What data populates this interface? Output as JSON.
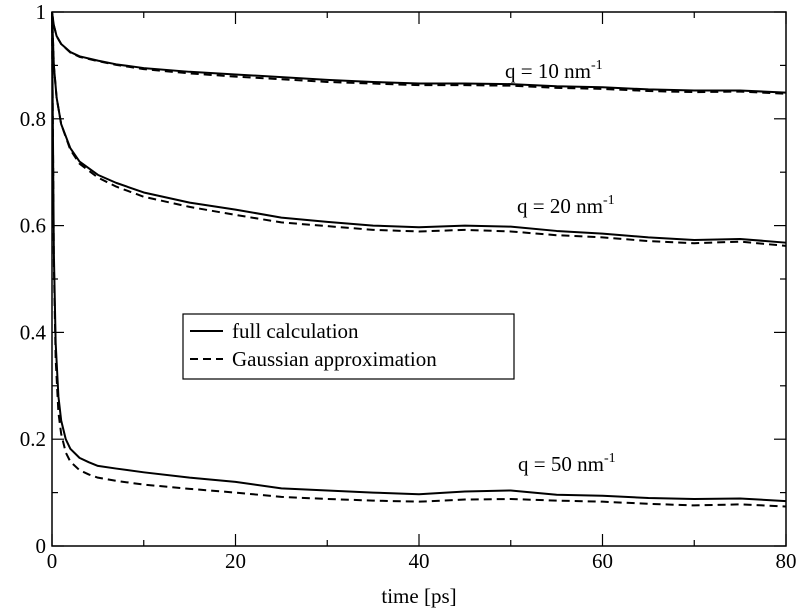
{
  "chart_data": {
    "type": "line",
    "title": "",
    "xlabel": "time [ps]",
    "ylabel": "",
    "xlim": [
      0,
      80
    ],
    "ylim": [
      0,
      1
    ],
    "xticks": [
      0,
      20,
      40,
      60,
      80
    ],
    "yticks": [
      0,
      0.2,
      0.4,
      0.6,
      0.8,
      1
    ],
    "xtick_labels": [
      "0",
      "20",
      "40",
      "60",
      "80"
    ],
    "ytick_labels": [
      "0",
      "0.2",
      "0.4",
      "0.6",
      "0.8",
      "1"
    ],
    "grid": false,
    "legend": {
      "placement": "center-left",
      "entries": [
        {
          "label": "full calculation",
          "style": "solid"
        },
        {
          "label": "Gaussian approximation",
          "style": "dashed"
        }
      ]
    },
    "annotations": [
      {
        "text": "q = 10 nm",
        "superscript": "-1"
      },
      {
        "text": "q = 20 nm",
        "superscript": "-1"
      },
      {
        "text": "q = 50 nm",
        "superscript": "-1"
      }
    ],
    "series": [
      {
        "q": "10",
        "style": "solid",
        "x": [
          0,
          0.2,
          0.5,
          1,
          2,
          3,
          5,
          7,
          10,
          15,
          20,
          25,
          30,
          35,
          40,
          45,
          50,
          55,
          60,
          65,
          70,
          75,
          80
        ],
        "y": [
          1.0,
          0.975,
          0.955,
          0.94,
          0.925,
          0.917,
          0.909,
          0.902,
          0.895,
          0.888,
          0.883,
          0.878,
          0.873,
          0.869,
          0.866,
          0.866,
          0.865,
          0.861,
          0.859,
          0.855,
          0.853,
          0.853,
          0.849
        ]
      },
      {
        "q": "10",
        "style": "dashed",
        "x": [
          0,
          0.2,
          0.5,
          1,
          2,
          3,
          5,
          7,
          10,
          15,
          20,
          25,
          30,
          35,
          40,
          45,
          50,
          55,
          60,
          65,
          70,
          75,
          80
        ],
        "y": [
          1.0,
          0.975,
          0.955,
          0.94,
          0.924,
          0.916,
          0.908,
          0.901,
          0.893,
          0.885,
          0.879,
          0.874,
          0.869,
          0.866,
          0.863,
          0.863,
          0.862,
          0.858,
          0.856,
          0.852,
          0.85,
          0.851,
          0.847
        ]
      },
      {
        "q": "20",
        "style": "solid",
        "x": [
          0,
          0.2,
          0.5,
          1,
          2,
          3,
          5,
          7,
          10,
          15,
          20,
          25,
          30,
          35,
          40,
          45,
          50,
          55,
          60,
          65,
          70,
          75,
          80
        ],
        "y": [
          1.0,
          0.9,
          0.84,
          0.79,
          0.745,
          0.72,
          0.695,
          0.68,
          0.662,
          0.643,
          0.63,
          0.615,
          0.607,
          0.6,
          0.597,
          0.6,
          0.598,
          0.59,
          0.585,
          0.578,
          0.573,
          0.575,
          0.568
        ]
      },
      {
        "q": "20",
        "style": "dashed",
        "x": [
          0,
          0.2,
          0.5,
          1,
          2,
          3,
          5,
          7,
          10,
          15,
          20,
          25,
          30,
          35,
          40,
          45,
          50,
          55,
          60,
          65,
          70,
          75,
          80
        ],
        "y": [
          1.0,
          0.9,
          0.84,
          0.79,
          0.742,
          0.716,
          0.69,
          0.673,
          0.654,
          0.635,
          0.62,
          0.606,
          0.599,
          0.592,
          0.589,
          0.592,
          0.589,
          0.582,
          0.578,
          0.571,
          0.567,
          0.57,
          0.562
        ]
      },
      {
        "q": "50",
        "style": "solid",
        "x": [
          0,
          0.2,
          0.4,
          0.7,
          1,
          1.5,
          2,
          3,
          4,
          5,
          7,
          10,
          15,
          20,
          25,
          30,
          35,
          40,
          45,
          50,
          55,
          60,
          65,
          70,
          75,
          80
        ],
        "y": [
          1.0,
          0.55,
          0.38,
          0.28,
          0.235,
          0.2,
          0.182,
          0.165,
          0.157,
          0.15,
          0.145,
          0.138,
          0.128,
          0.12,
          0.108,
          0.104,
          0.1,
          0.097,
          0.102,
          0.104,
          0.096,
          0.094,
          0.09,
          0.088,
          0.089,
          0.084
        ]
      },
      {
        "q": "50",
        "style": "dashed",
        "x": [
          0,
          0.2,
          0.4,
          0.7,
          1,
          1.5,
          2,
          3,
          4,
          5,
          7,
          10,
          15,
          20,
          25,
          30,
          35,
          40,
          45,
          50,
          55,
          60,
          65,
          70,
          75,
          80
        ],
        "y": [
          1.0,
          0.53,
          0.35,
          0.25,
          0.21,
          0.175,
          0.158,
          0.142,
          0.134,
          0.128,
          0.122,
          0.115,
          0.107,
          0.1,
          0.092,
          0.088,
          0.085,
          0.083,
          0.087,
          0.088,
          0.085,
          0.083,
          0.079,
          0.076,
          0.078,
          0.074
        ]
      }
    ]
  }
}
